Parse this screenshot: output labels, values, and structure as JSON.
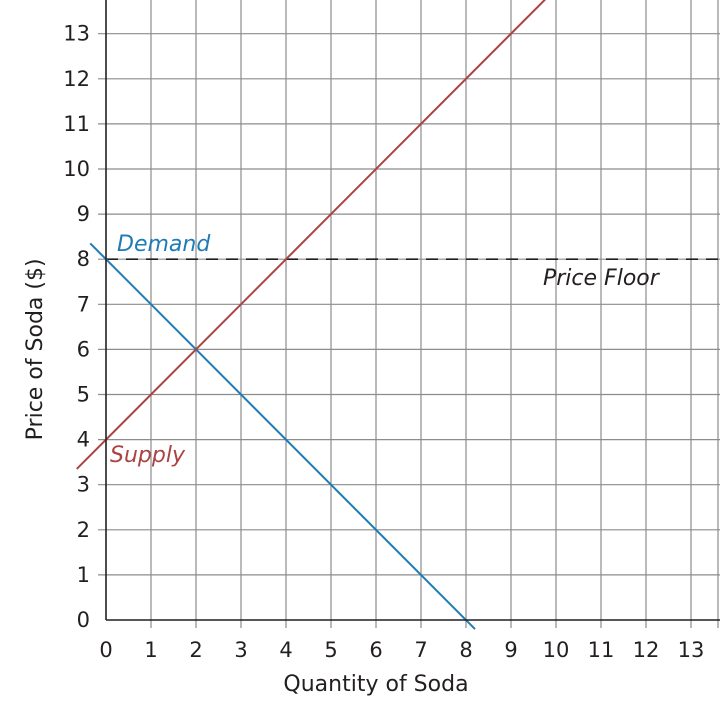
{
  "chart_data": {
    "type": "line",
    "title": "",
    "xlabel": "Quantity of Soda",
    "ylabel": "Price of Soda ($)",
    "xlim": [
      0,
      13
    ],
    "ylim": [
      0,
      13
    ],
    "x_ticks": [
      "0",
      "1",
      "2",
      "3",
      "4",
      "5",
      "6",
      "7",
      "8",
      "9",
      "10",
      "11",
      "12",
      "13"
    ],
    "y_ticks": [
      "0",
      "1",
      "2",
      "3",
      "4",
      "5",
      "6",
      "7",
      "8",
      "9",
      "10",
      "11",
      "12",
      "13"
    ],
    "grid": true,
    "series": [
      {
        "name": "Demand",
        "color": "#1f7bb5",
        "points": [
          [
            -0.35,
            8.35
          ],
          [
            8.2,
            -0.2
          ]
        ]
      },
      {
        "name": "Supply",
        "color": "#a94442",
        "points": [
          [
            -0.65,
            3.35
          ],
          [
            9.85,
            13.85
          ]
        ]
      }
    ],
    "reference_lines": [
      {
        "name": "Price Floor",
        "y": 8,
        "style": "dashed",
        "color": "#231f20"
      }
    ]
  }
}
